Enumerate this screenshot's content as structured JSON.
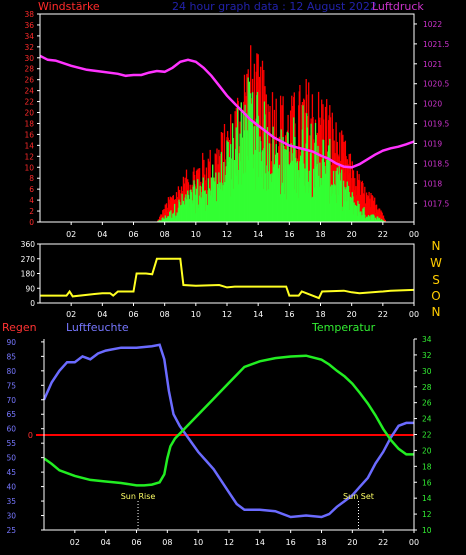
{
  "header": {
    "wind_title": "Windstärke",
    "center_title": "24 hour graph data : 12 August 2022",
    "pressure_title": "Luftdruck"
  },
  "labels": {
    "rain": "Regen",
    "humidity": "Luftfeuchte",
    "temperature": "Temperatur",
    "sunrise": "Sun Rise",
    "sunset": "Sun Set",
    "compass": [
      "N",
      "W",
      "S",
      "O",
      "N"
    ]
  },
  "colors": {
    "background": "#000000",
    "axis": "#ffffff",
    "wind_axis": "#ff2a2a",
    "pressure_axis": "#cc33cc",
    "wind_gust": "#ff0000",
    "wind_speed": "#33ff33",
    "pressure_line": "#ff33ff",
    "direction_line": "#ffff22",
    "humidity_line": "#6b6bff",
    "temperature_line": "#22ee22",
    "rain_line": "#ff0000",
    "compass_text": "#ffcc00",
    "rain_axis": "#ff3333",
    "humidity_axis": "#7777ff",
    "temperature_axis": "#33ee33",
    "sun_text": "#ffff66",
    "title_text": "#2222aa"
  },
  "chart_data": [
    {
      "type": "bar",
      "name": "wind_and_pressure",
      "x_ticks": [
        "02",
        "04",
        "06",
        "08",
        "10",
        "12",
        "14",
        "16",
        "18",
        "20",
        "22",
        "00"
      ],
      "xlim": [
        0,
        24
      ],
      "y_left_ticks": [
        "0",
        "2",
        "4",
        "6",
        "8",
        "10",
        "12",
        "14",
        "16",
        "18",
        "20",
        "22",
        "24",
        "26",
        "28",
        "30",
        "32",
        "34",
        "36",
        "38"
      ],
      "ylim_left": [
        0,
        38
      ],
      "y_right_ticks": [
        "1017.5",
        "1018",
        "1018.5",
        "1019",
        "1019.5",
        "1020",
        "1020.5",
        "1021",
        "1021.5",
        "1022"
      ],
      "ylim_right": [
        1017.03,
        1022.25
      ],
      "wind_profile_x": [
        0,
        7.5,
        8.3,
        9.0,
        10.0,
        11.0,
        12.0,
        12.5,
        13.0,
        13.5,
        14.0,
        15.0,
        16.0,
        17.0,
        18.0,
        18.5,
        19.0,
        19.5,
        20.0,
        20.5,
        21.0,
        21.8,
        22.2,
        24
      ],
      "wind_gust_max": [
        0,
        0,
        5,
        8,
        12,
        14,
        19,
        23,
        30,
        33,
        31,
        26,
        23,
        27,
        25,
        24,
        19,
        16,
        12,
        9,
        6,
        4,
        0,
        0
      ],
      "wind_speed_max": [
        0,
        0,
        2,
        5,
        8,
        11,
        15,
        21,
        30,
        32,
        27,
        20,
        18,
        24,
        18,
        16,
        12,
        9,
        6,
        4,
        2,
        1,
        0,
        0
      ],
      "pressure_x": [
        0,
        0.5,
        1,
        2,
        3,
        4,
        5,
        5.5,
        6,
        6.5,
        7,
        7.5,
        8,
        8.5,
        9,
        9.5,
        10,
        10.5,
        11,
        11.5,
        12,
        12.5,
        13,
        13.5,
        14,
        14.5,
        15,
        15.5,
        16,
        16.5,
        17,
        17.5,
        18,
        18.5,
        19,
        19.5,
        20,
        20.5,
        21,
        21.5,
        22,
        22.5,
        23,
        23.5,
        24
      ],
      "pressure_values": [
        1021.2,
        1021.1,
        1021.08,
        1020.95,
        1020.85,
        1020.8,
        1020.75,
        1020.7,
        1020.72,
        1020.72,
        1020.78,
        1020.82,
        1020.8,
        1020.9,
        1021.05,
        1021.1,
        1021.05,
        1020.9,
        1020.7,
        1020.45,
        1020.2,
        1020.0,
        1019.8,
        1019.6,
        1019.45,
        1019.3,
        1019.15,
        1019.05,
        1018.95,
        1018.9,
        1018.85,
        1018.8,
        1018.7,
        1018.62,
        1018.5,
        1018.42,
        1018.4,
        1018.48,
        1018.6,
        1018.72,
        1018.82,
        1018.88,
        1018.92,
        1018.98,
        1019.05
      ]
    },
    {
      "type": "line",
      "name": "wind_direction",
      "x_ticks": [
        "02",
        "04",
        "06",
        "08",
        "10",
        "12",
        "14",
        "16",
        "18",
        "20",
        "22",
        "00"
      ],
      "xlim": [
        0,
        24
      ],
      "y_ticks": [
        "0",
        "90",
        "180",
        "270",
        "360"
      ],
      "ylim": [
        0,
        360
      ],
      "x": [
        0,
        1.7,
        1.9,
        2.1,
        3.5,
        4.0,
        4.5,
        4.7,
        5.0,
        6.0,
        6.2,
        6.8,
        7.2,
        7.5,
        9.0,
        9.2,
        10.0,
        11.5,
        12.0,
        12.5,
        14.0,
        15.0,
        15.8,
        16.0,
        16.6,
        16.8,
        17.9,
        18.1,
        19.5,
        20.0,
        20.5,
        22.0,
        22.5,
        24.0
      ],
      "values": [
        45,
        45,
        70,
        40,
        55,
        60,
        60,
        45,
        70,
        70,
        180,
        180,
        175,
        270,
        270,
        110,
        105,
        110,
        95,
        100,
        100,
        100,
        100,
        45,
        45,
        70,
        30,
        70,
        75,
        65,
        60,
        70,
        75,
        80
      ]
    },
    {
      "type": "line",
      "name": "humidity_temperature_rain",
      "x_ticks": [
        "02",
        "04",
        "06",
        "08",
        "10",
        "12",
        "14",
        "16",
        "18",
        "20",
        "22",
        "00"
      ],
      "xlim": [
        0,
        24
      ],
      "y_left_ticks": [
        "25",
        "30",
        "35",
        "40",
        "45",
        "50",
        "55",
        "60",
        "65",
        "70",
        "75",
        "80",
        "85",
        "90"
      ],
      "ylim_left": [
        25,
        91
      ],
      "y_right_ticks": [
        "10",
        "12",
        "14",
        "16",
        "18",
        "20",
        "22",
        "24",
        "26",
        "28",
        "30",
        "32",
        "34"
      ],
      "ylim_right": [
        10,
        34
      ],
      "rain_tick": "0",
      "rain_value": 0,
      "sunrise_hour": 6.1,
      "sunset_hour": 20.4,
      "humidity_x": [
        0,
        0.5,
        1,
        1.5,
        2,
        2.5,
        3,
        3.5,
        4,
        5,
        6,
        7,
        7.5,
        7.8,
        8.1,
        8.4,
        8.8,
        9.2,
        10,
        10.5,
        11,
        11.5,
        12,
        12.5,
        13,
        14,
        15,
        16,
        17,
        18,
        18.5,
        19,
        19.5,
        20,
        20.5,
        21,
        21.5,
        22,
        22.5,
        23,
        23.5,
        24
      ],
      "humidity_values": [
        70,
        76,
        80,
        83,
        83,
        85,
        84,
        86,
        87,
        88,
        88,
        88.5,
        89,
        84,
        73,
        65,
        61,
        58,
        52,
        49,
        46,
        42,
        38,
        34,
        32,
        32,
        31.5,
        29.5,
        30,
        29.5,
        30.5,
        33,
        35,
        37,
        40,
        43,
        48,
        52,
        57,
        61,
        62,
        62
      ],
      "temperature_x": [
        0,
        0.5,
        1,
        2,
        3,
        4,
        5,
        6,
        6.5,
        7,
        7.5,
        7.8,
        8,
        8.2,
        8.5,
        9,
        10,
        11,
        12,
        13,
        14,
        15,
        16,
        17,
        18,
        18.5,
        19,
        19.5,
        20,
        20.5,
        21,
        21.5,
        22,
        22.5,
        23,
        23.5,
        24
      ],
      "temperature_values": [
        19,
        18.3,
        17.5,
        16.8,
        16.3,
        16.1,
        15.9,
        15.6,
        15.6,
        15.7,
        16,
        17,
        19,
        20.5,
        21.5,
        22.5,
        24.5,
        26.5,
        28.5,
        30.5,
        31.2,
        31.6,
        31.8,
        31.9,
        31.4,
        30.8,
        30,
        29.3,
        28.4,
        27.2,
        25.9,
        24.4,
        22.7,
        21.3,
        20.2,
        19.5,
        19.5
      ]
    }
  ]
}
